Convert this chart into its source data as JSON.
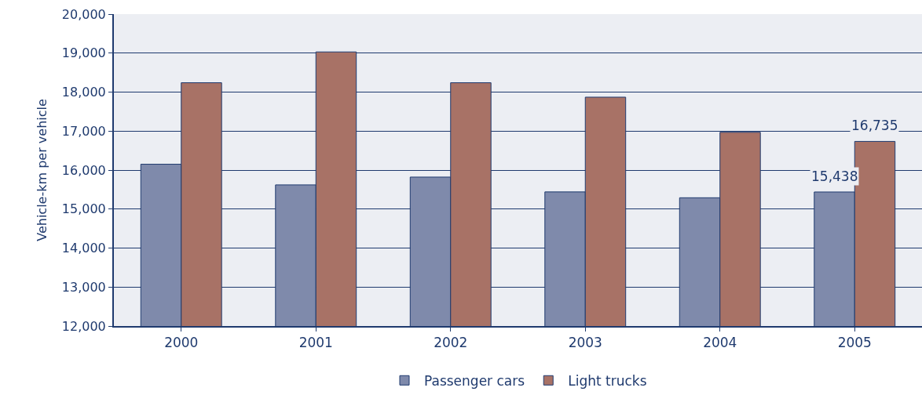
{
  "chart_data": {
    "type": "bar",
    "ylabel": "Vehicle-km per vehicle",
    "categories": [
      "2000",
      "2001",
      "2002",
      "2003",
      "2004",
      "2005"
    ],
    "series": [
      {
        "name": "Passenger cars",
        "color": "#7f8aab",
        "values": [
          16150,
          15620,
          15820,
          15440,
          15290,
          15438
        ],
        "value_labels": [
          null,
          null,
          null,
          null,
          null,
          "15,438"
        ]
      },
      {
        "name": "Light trucks",
        "color": "#a87266",
        "values": [
          18240,
          19030,
          18240,
          17870,
          16970,
          16735
        ],
        "value_labels": [
          null,
          null,
          null,
          null,
          null,
          "16,735"
        ]
      }
    ],
    "ylim": [
      12000,
      20000
    ],
    "yticks": [
      {
        "value": 12000,
        "label": "12,000"
      },
      {
        "value": 13000,
        "label": "13,000"
      },
      {
        "value": 14000,
        "label": "14,000"
      },
      {
        "value": 15000,
        "label": "15,000"
      },
      {
        "value": 16000,
        "label": "16,000"
      },
      {
        "value": 17000,
        "label": "17,000"
      },
      {
        "value": 18000,
        "label": "18,000"
      },
      {
        "value": 19000,
        "label": "19,000"
      },
      {
        "value": 20000,
        "label": "20,000"
      }
    ],
    "grid": "y",
    "legend": "bottom"
  }
}
